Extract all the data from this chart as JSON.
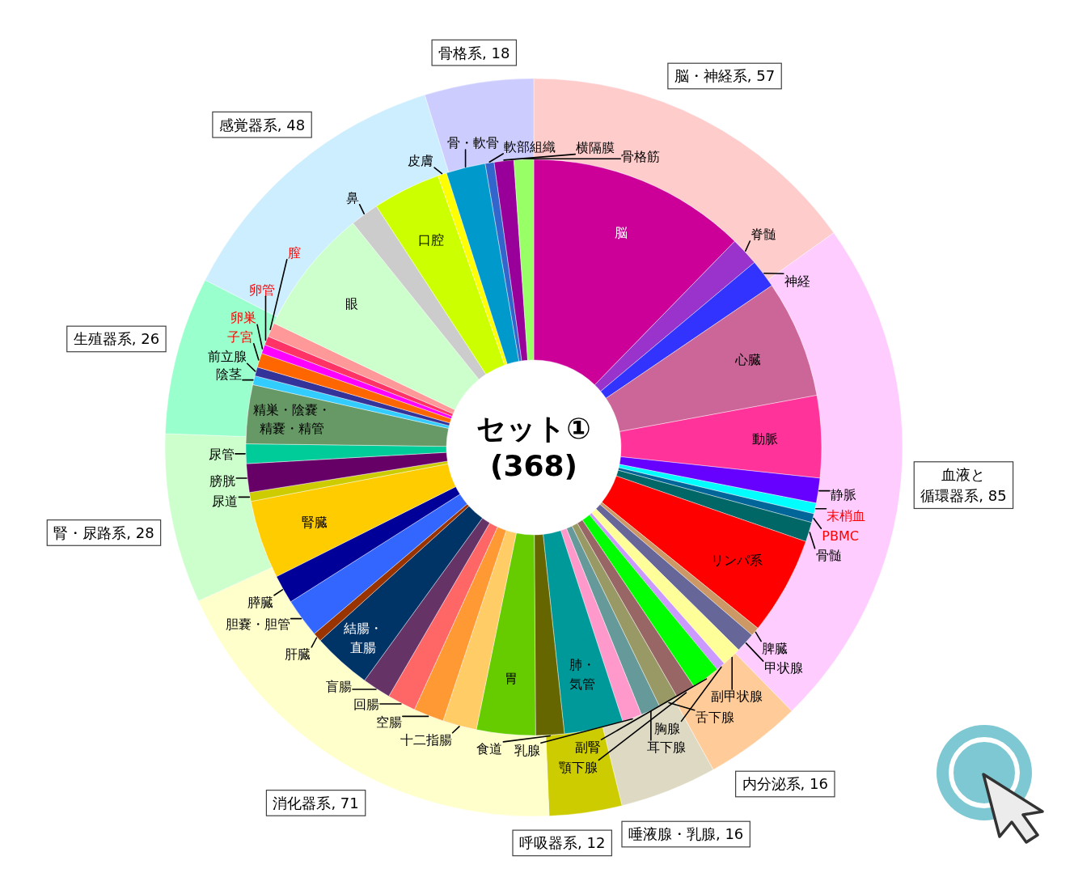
{
  "chart_data": [
    {
      "type": "donut",
      "title": "セット①",
      "subtitle": "(368)",
      "categories": [
        "脳・神経系",
        "血液と循環器系",
        "内分泌系",
        "唾液腺・乳腺",
        "呼吸器系",
        "消化器系",
        "腎・尿路系",
        "生殖器系",
        "感覚器系",
        "骨格系"
      ],
      "values": [
        57,
        85,
        16,
        16,
        12,
        71,
        28,
        26,
        48,
        18
      ],
      "value_labels": [
        ", 57",
        ", 85",
        ", 16",
        ", 16",
        ", 12",
        ", 71",
        ", 28",
        ", 26",
        ", 48",
        ", 18"
      ],
      "colors": [
        "#ffcccc",
        "#ffccff",
        "#ffcc99",
        "#ddd9c3",
        "#cccc00",
        "#ffffcc",
        "#ccffcc",
        "#99ffcc",
        "#cceeff",
        "#ccccff"
      ]
    },
    {
      "type": "donut",
      "categories": [
        "脳",
        "脊髄",
        "神経",
        "心臓",
        "動脈",
        "静脈",
        "末梢血",
        "PBMC",
        "骨髄",
        "リンパ系",
        "脾臓",
        "甲状腺",
        "副甲状腺",
        "胸腺",
        "副腎",
        "顎下腺",
        "舌下腺",
        "耳下腺",
        "乳腺",
        "肺・気管",
        "食道",
        "胃",
        "十二指腸",
        "空腸",
        "回腸",
        "盲腸",
        "結腸・直腸",
        "肝臓",
        "胆嚢・胆管",
        "膵臓",
        "腎臓",
        "尿道",
        "膀胱",
        "尿管",
        "精巣・陰嚢・精嚢・精管",
        "陰茎",
        "前立腺",
        "子宮",
        "卵巣",
        "卵管",
        "膣",
        "眼",
        "鼻",
        "口腔",
        "皮膚",
        "骨・軟骨",
        "軟部組織",
        "横隔膜",
        "骨格筋"
      ],
      "values": [
        12.3,
        1.6,
        1.6,
        6.6,
        4.6,
        1.4,
        0.6,
        0.5,
        1.1,
        5.5,
        0.5,
        1.1,
        1.1,
        0.5,
        1.6,
        1.1,
        1.1,
        1.1,
        1.1,
        3.3,
        1.6,
        3.3,
        1.9,
        1.7,
        1.6,
        1.6,
        3.3,
        0.5,
        2.2,
        1.6,
        4.4,
        0.5,
        1.6,
        1.1,
        3.3,
        0.5,
        0.5,
        0.8,
        0.5,
        0.5,
        0.8,
        7.1,
        1.6,
        3.8,
        0.5,
        2.2,
        0.5,
        1.1,
        1.1
      ],
      "colors": [
        "#cc0099",
        "#9933cc",
        "#3333ff",
        "#cc6699",
        "#ff3399",
        "#6600ff",
        "#00ffff",
        "#006699",
        "#006666",
        "#ff0000",
        "#cc9966",
        "#666699",
        "#ffff99",
        "#cc99ff",
        "#00ff00",
        "#996666",
        "#999966",
        "#669999",
        "#ff99cc",
        "#009999",
        "#666600",
        "#66cc00",
        "#ffcc66",
        "#ff9933",
        "#ff6666",
        "#663366",
        "#003366",
        "#993300",
        "#3366ff",
        "#000099",
        "#ffcc00",
        "#cccc00",
        "#660066",
        "#00cc99",
        "#669966",
        "#33ccff",
        "#333399",
        "#ff6600",
        "#ff00ff",
        "#ff3366",
        "#ff9999",
        "#ccffcc",
        "#cccccc",
        "#ccff00",
        "#ffff00",
        "#0099cc",
        "#3366cc",
        "#990099",
        "#99ff66"
      ]
    }
  ]
}
